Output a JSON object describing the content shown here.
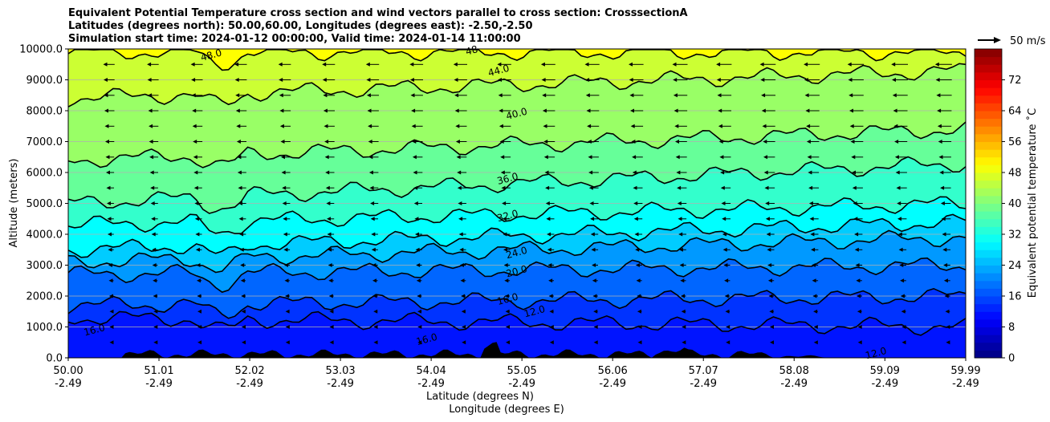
{
  "chart_data": {
    "type": "heatmap",
    "subtype": "filled-contour cross section with wind vectors",
    "title_lines": [
      "Equivalent Potential Temperature cross section and wind vectors parallel to cross section: CrosssectionA",
      "Latitudes (degrees north): 50.00,60.00, Longitudes (degrees east): -2.50,-2.50",
      "Simulation start time: 2024-01-12 00:00:00, Valid time: 2024-01-14 11:00:00"
    ],
    "xlabel_1": "Latitude (degrees N)",
    "xlabel_2": "Longitude (degrees E)",
    "ylabel": "Altitude (meters)",
    "x_range": [
      50.0,
      59.99
    ],
    "y_range": [
      0,
      10000
    ],
    "x_ticks": [
      {
        "lat": "50.00",
        "lon": "-2.49"
      },
      {
        "lat": "51.01",
        "lon": "-2.49"
      },
      {
        "lat": "52.02",
        "lon": "-2.49"
      },
      {
        "lat": "53.03",
        "lon": "-2.49"
      },
      {
        "lat": "54.04",
        "lon": "-2.49"
      },
      {
        "lat": "55.05",
        "lon": "-2.49"
      },
      {
        "lat": "56.06",
        "lon": "-2.49"
      },
      {
        "lat": "57.07",
        "lon": "-2.49"
      },
      {
        "lat": "58.08",
        "lon": "-2.49"
      },
      {
        "lat": "59.09",
        "lon": "-2.49"
      },
      {
        "lat": "59.99",
        "lon": "-2.49"
      }
    ],
    "y_ticks": [
      "0.0",
      "1000.0",
      "2000.0",
      "3000.0",
      "4000.0",
      "5000.0",
      "6000.0",
      "7000.0",
      "8000.0",
      "9000.0",
      "10000.0"
    ],
    "grid": "horizontal",
    "colorbar": {
      "label": "Equivalent potential temperature ˚C",
      "range": [
        0,
        80
      ],
      "ticks": [
        "0",
        "8",
        "16",
        "24",
        "32",
        "40",
        "48",
        "56",
        "64",
        "72"
      ],
      "colormap": "jet"
    },
    "quiver_key": {
      "label": "50 m/s"
    },
    "contours": [
      {
        "level": 12.0,
        "label": "12.0",
        "alt_left": 1300,
        "alt_right": 1000
      },
      {
        "level": 16.0,
        "label": "16.0",
        "alt_left": 1700,
        "alt_right": 2000
      },
      {
        "level": 20.0,
        "label": "20.0",
        "alt_left": 2700,
        "alt_right": 3000
      },
      {
        "level": 24.0,
        "label": "24.0",
        "alt_left": 3100,
        "alt_right": 3900
      },
      {
        "level": 28.0,
        "label": "",
        "alt_left": 3500,
        "alt_right": 4400
      },
      {
        "level": 32.0,
        "label": "32.0",
        "alt_left": 4300,
        "alt_right": 5000
      },
      {
        "level": 36.0,
        "label": "36.0",
        "alt_left": 5000,
        "alt_right": 6300
      },
      {
        "level": 40.0,
        "label": "40.0",
        "alt_left": 6400,
        "alt_right": 7400
      },
      {
        "level": 44.0,
        "label": "44.0",
        "alt_left": 8400,
        "alt_right": 9300
      },
      {
        "level": 48.0,
        "label": "48.0",
        "alt_left": 9900,
        "alt_right": 9900
      }
    ],
    "contour_label_positions": [
      {
        "label": "48.0",
        "lat": 51.6,
        "alt": 9700
      },
      {
        "label": "48",
        "lat": 54.5,
        "alt": 9850
      },
      {
        "label": "44.0",
        "lat": 54.8,
        "alt": 9200
      },
      {
        "label": "40.0",
        "lat": 55.0,
        "alt": 7800
      },
      {
        "label": "36.0",
        "lat": 54.9,
        "alt": 5700
      },
      {
        "label": "32.0",
        "lat": 54.9,
        "alt": 4500
      },
      {
        "label": "24.0",
        "lat": 55.0,
        "alt": 3300
      },
      {
        "label": "20.0",
        "lat": 55.0,
        "alt": 2700
      },
      {
        "label": "16.0",
        "lat": 54.9,
        "alt": 1800
      },
      {
        "label": "12.0",
        "lat": 55.2,
        "alt": 1400
      },
      {
        "label": "16.0",
        "lat": 50.3,
        "alt": 800
      },
      {
        "label": "16.0",
        "lat": 54.0,
        "alt": 500
      },
      {
        "label": "12.0",
        "lat": 59.0,
        "alt": 50
      }
    ],
    "wind_note": "Vectors mostly point west (leftward), stronger with altitude"
  }
}
